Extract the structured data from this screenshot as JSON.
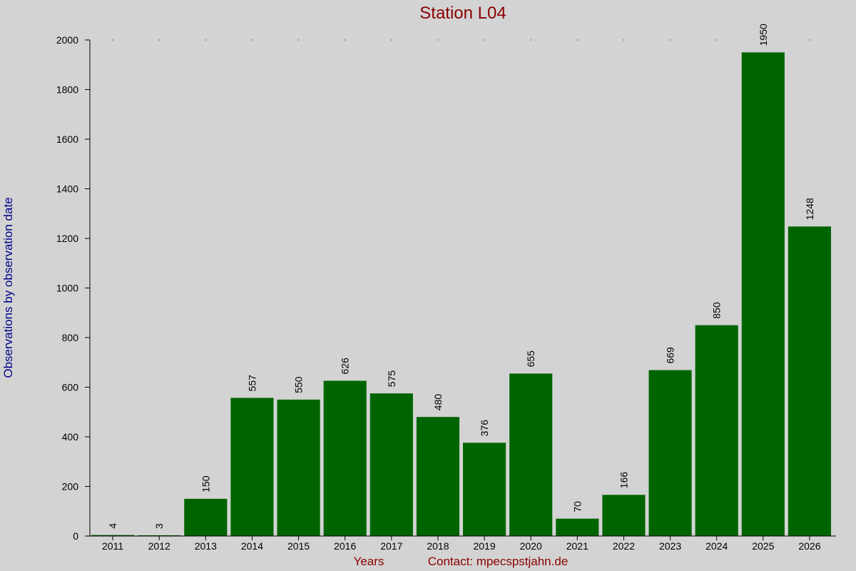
{
  "chart_data": {
    "type": "bar",
    "title": "Station L04",
    "ylabel": "Observations by observation date",
    "xlabel": "Years",
    "contact": "Contact: mpecspstjahn.de",
    "categories": [
      "2011",
      "2012",
      "2013",
      "2014",
      "2015",
      "2016",
      "2017",
      "2018",
      "2019",
      "2020",
      "2021",
      "2022",
      "2023",
      "2024",
      "2025",
      "2026"
    ],
    "values": [
      4,
      3,
      150,
      557,
      550,
      626,
      575,
      480,
      376,
      655,
      70,
      166,
      669,
      850,
      1950,
      1248
    ],
    "ylim": [
      0,
      2000
    ],
    "yticks": [
      0,
      200,
      400,
      600,
      800,
      1000,
      1200,
      1400,
      1600,
      1800,
      2000
    ],
    "bar_color": "#006400",
    "background": "#d3d3d3",
    "title_color": "#8b0000",
    "ylabel_color": "#00008b",
    "grid": false
  }
}
